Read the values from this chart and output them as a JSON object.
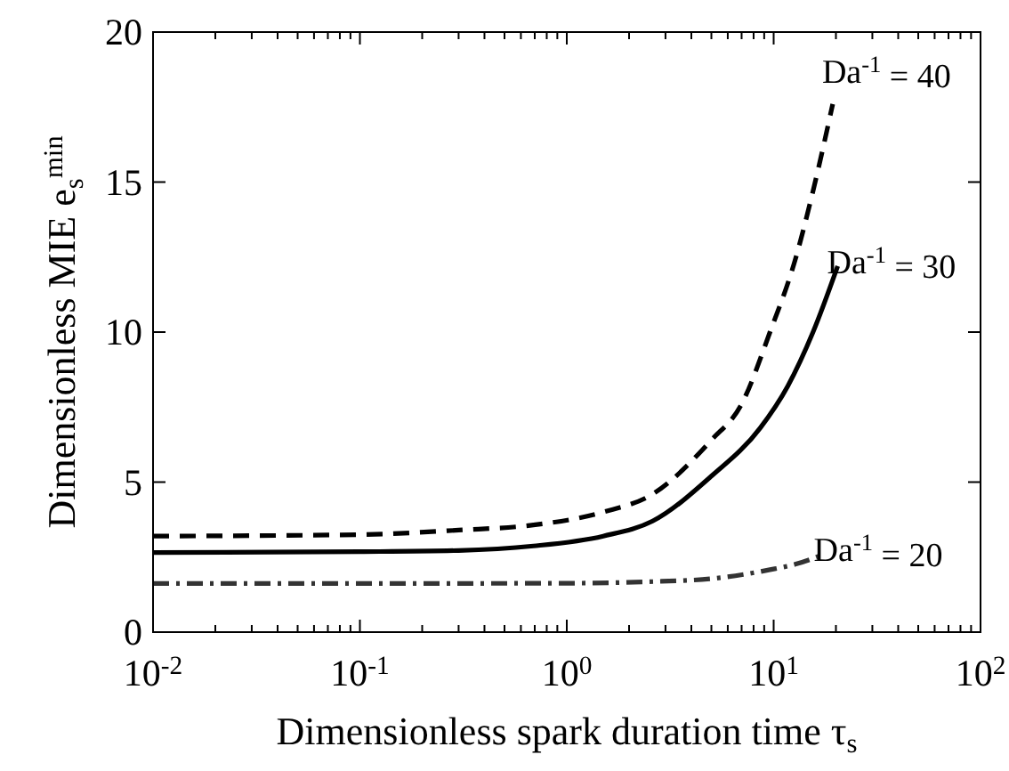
{
  "chart_data": {
    "type": "line",
    "xlabel": "Dimensionless spark duration time τ$_{s}$",
    "ylabel": "Dimensionless MIE e$_{s}$$^{min}$",
    "log": "x",
    "xlim": [
      0.01,
      100
    ],
    "ylim": [
      0,
      20
    ],
    "yticks": [
      0,
      5,
      10,
      15,
      20
    ],
    "xticks": [
      {
        "value": 0.01,
        "label": "10$^{-2}$"
      },
      {
        "value": 0.02,
        "label": null
      },
      {
        "value": 0.03,
        "label": null
      },
      {
        "value": 0.04,
        "label": null
      },
      {
        "value": 0.05,
        "label": null
      },
      {
        "value": 0.06,
        "label": null
      },
      {
        "value": 0.07,
        "label": null
      },
      {
        "value": 0.08,
        "label": null
      },
      {
        "value": 0.09,
        "label": null
      },
      {
        "value": 0.1,
        "label": "10$^{-1}$"
      },
      {
        "value": 0.2,
        "label": null
      },
      {
        "value": 0.3,
        "label": null
      },
      {
        "value": 0.4,
        "label": null
      },
      {
        "value": 0.5,
        "label": null
      },
      {
        "value": 0.6,
        "label": null
      },
      {
        "value": 0.7,
        "label": null
      },
      {
        "value": 0.8,
        "label": null
      },
      {
        "value": 0.9,
        "label": null
      },
      {
        "value": 1,
        "label": "10$^{0}$"
      },
      {
        "value": 2,
        "label": null
      },
      {
        "value": 3,
        "label": null
      },
      {
        "value": 4,
        "label": null
      },
      {
        "value": 5,
        "label": null
      },
      {
        "value": 6,
        "label": null
      },
      {
        "value": 7,
        "label": null
      },
      {
        "value": 8,
        "label": null
      },
      {
        "value": 9,
        "label": null
      },
      {
        "value": 10,
        "label": "10$^{1}$"
      },
      {
        "value": 20,
        "label": null
      },
      {
        "value": 30,
        "label": null
      },
      {
        "value": 40,
        "label": null
      },
      {
        "value": 50,
        "label": null
      },
      {
        "value": 60,
        "label": null
      },
      {
        "value": 70,
        "label": null
      },
      {
        "value": 80,
        "label": null
      },
      {
        "value": 90,
        "label": null
      },
      {
        "value": 100,
        "label": "10$^{2}$"
      }
    ],
    "grid": false,
    "marker": "none",
    "annotations": [
      {
        "text": "Da$^{-1}$ = 40",
        "x": 19.3,
        "y": 17.6
      },
      {
        "text": "Da$^{-1}$ = 30",
        "x": 20.4,
        "y": 12.2
      },
      {
        "text": "Da$^{-1}$ = 20",
        "x": 17.6,
        "y": 2.6
      }
    ],
    "series": [
      {
        "color": "#000000",
        "line_style": "dashed",
        "x": [
          0.01,
          0.1,
          0.3,
          0.69,
          1.5,
          2.6,
          5.0,
          7.0,
          9.6,
          12.7,
          15.5,
          19.3
        ],
        "values": [
          3.2,
          3.25,
          3.4,
          3.57,
          4.0,
          4.6,
          6.4,
          7.6,
          10.0,
          12.4,
          14.7,
          17.6
        ]
      },
      {
        "color": "#000000",
        "line_style": "solid",
        "x": [
          0.01,
          0.1,
          0.3,
          0.69,
          1.5,
          2.6,
          5.0,
          8.6,
          11.7,
          15.5,
          20.4
        ],
        "values": [
          2.65,
          2.68,
          2.72,
          2.87,
          3.2,
          3.7,
          5.2,
          6.8,
          8.2,
          10.0,
          12.2
        ]
      },
      {
        "color": "#333333",
        "line_style": "dashdot",
        "x": [
          0.01,
          0.1,
          1,
          2.5,
          5.0,
          9.6,
          12.7,
          17.6
        ],
        "values": [
          1.62,
          1.62,
          1.63,
          1.68,
          1.78,
          2.08,
          2.26,
          2.6
        ]
      }
    ]
  }
}
